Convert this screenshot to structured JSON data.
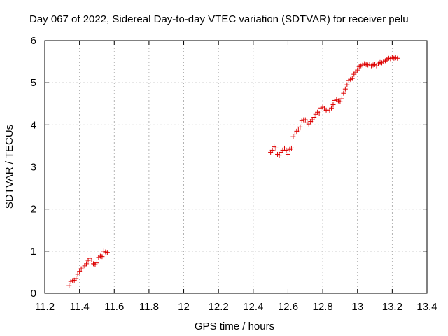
{
  "chart_data": {
    "type": "scatter",
    "title": "Day 067 of 2022, Sidereal Day-to-day VTEC variation (SDTVAR) for receiver pelu",
    "xlabel": "GPS time / hours",
    "ylabel": "SDTVAR / TECUs",
    "xlim": [
      11.2,
      13.4
    ],
    "ylim": [
      0,
      6
    ],
    "xticks": [
      "11.2",
      "11.4",
      "11.6",
      "11.8",
      "12",
      "12.2",
      "12.4",
      "12.6",
      "12.8",
      "13",
      "13.2",
      "13.4"
    ],
    "yticks": [
      "0",
      "1",
      "2",
      "3",
      "4",
      "5",
      "6"
    ],
    "grid": true,
    "marker": "+",
    "color": "#dd0000",
    "series": [
      {
        "name": "SDTVAR",
        "points": [
          [
            11.34,
            0.18
          ],
          [
            11.35,
            0.28
          ],
          [
            11.36,
            0.3
          ],
          [
            11.37,
            0.31
          ],
          [
            11.38,
            0.35
          ],
          [
            11.39,
            0.45
          ],
          [
            11.4,
            0.52
          ],
          [
            11.41,
            0.58
          ],
          [
            11.42,
            0.62
          ],
          [
            11.43,
            0.65
          ],
          [
            11.44,
            0.7
          ],
          [
            11.45,
            0.78
          ],
          [
            11.46,
            0.83
          ],
          [
            11.47,
            0.79
          ],
          [
            11.48,
            0.7
          ],
          [
            11.49,
            0.68
          ],
          [
            11.5,
            0.72
          ],
          [
            11.51,
            0.85
          ],
          [
            11.52,
            0.88
          ],
          [
            11.53,
            0.87
          ],
          [
            11.54,
            1.0
          ],
          [
            11.55,
            0.98
          ],
          [
            11.56,
            0.97
          ],
          [
            12.5,
            3.35
          ],
          [
            12.51,
            3.4
          ],
          [
            12.52,
            3.48
          ],
          [
            12.53,
            3.45
          ],
          [
            12.54,
            3.3
          ],
          [
            12.55,
            3.28
          ],
          [
            12.56,
            3.35
          ],
          [
            12.57,
            3.4
          ],
          [
            12.58,
            3.45
          ],
          [
            12.59,
            3.4
          ],
          [
            12.6,
            3.3
          ],
          [
            12.61,
            3.42
          ],
          [
            12.62,
            3.45
          ],
          [
            12.63,
            3.72
          ],
          [
            12.64,
            3.78
          ],
          [
            12.65,
            3.85
          ],
          [
            12.66,
            3.88
          ],
          [
            12.67,
            3.95
          ],
          [
            12.68,
            4.1
          ],
          [
            12.69,
            4.12
          ],
          [
            12.7,
            4.12
          ],
          [
            12.71,
            4.05
          ],
          [
            12.72,
            4.02
          ],
          [
            12.73,
            4.08
          ],
          [
            12.74,
            4.12
          ],
          [
            12.75,
            4.18
          ],
          [
            12.76,
            4.25
          ],
          [
            12.77,
            4.3
          ],
          [
            12.78,
            4.28
          ],
          [
            12.79,
            4.4
          ],
          [
            12.8,
            4.42
          ],
          [
            12.81,
            4.38
          ],
          [
            12.82,
            4.35
          ],
          [
            12.83,
            4.35
          ],
          [
            12.84,
            4.33
          ],
          [
            12.85,
            4.4
          ],
          [
            12.86,
            4.48
          ],
          [
            12.87,
            4.58
          ],
          [
            12.88,
            4.6
          ],
          [
            12.89,
            4.57
          ],
          [
            12.9,
            4.55
          ],
          [
            12.91,
            4.62
          ],
          [
            12.92,
            4.75
          ],
          [
            12.93,
            4.85
          ],
          [
            12.94,
            4.95
          ],
          [
            12.95,
            5.05
          ],
          [
            12.96,
            5.08
          ],
          [
            12.97,
            5.1
          ],
          [
            12.98,
            5.2
          ],
          [
            12.99,
            5.25
          ],
          [
            13.0,
            5.3
          ],
          [
            13.01,
            5.38
          ],
          [
            13.02,
            5.4
          ],
          [
            13.03,
            5.42
          ],
          [
            13.04,
            5.45
          ],
          [
            13.05,
            5.43
          ],
          [
            13.06,
            5.42
          ],
          [
            13.07,
            5.44
          ],
          [
            13.08,
            5.4
          ],
          [
            13.09,
            5.42
          ],
          [
            13.1,
            5.43
          ],
          [
            13.11,
            5.4
          ],
          [
            13.12,
            5.45
          ],
          [
            13.13,
            5.48
          ],
          [
            13.14,
            5.47
          ],
          [
            13.15,
            5.5
          ],
          [
            13.16,
            5.52
          ],
          [
            13.17,
            5.55
          ],
          [
            13.18,
            5.58
          ],
          [
            13.19,
            5.57
          ],
          [
            13.2,
            5.6
          ],
          [
            13.21,
            5.58
          ],
          [
            13.22,
            5.59
          ],
          [
            13.23,
            5.58
          ]
        ]
      }
    ]
  }
}
